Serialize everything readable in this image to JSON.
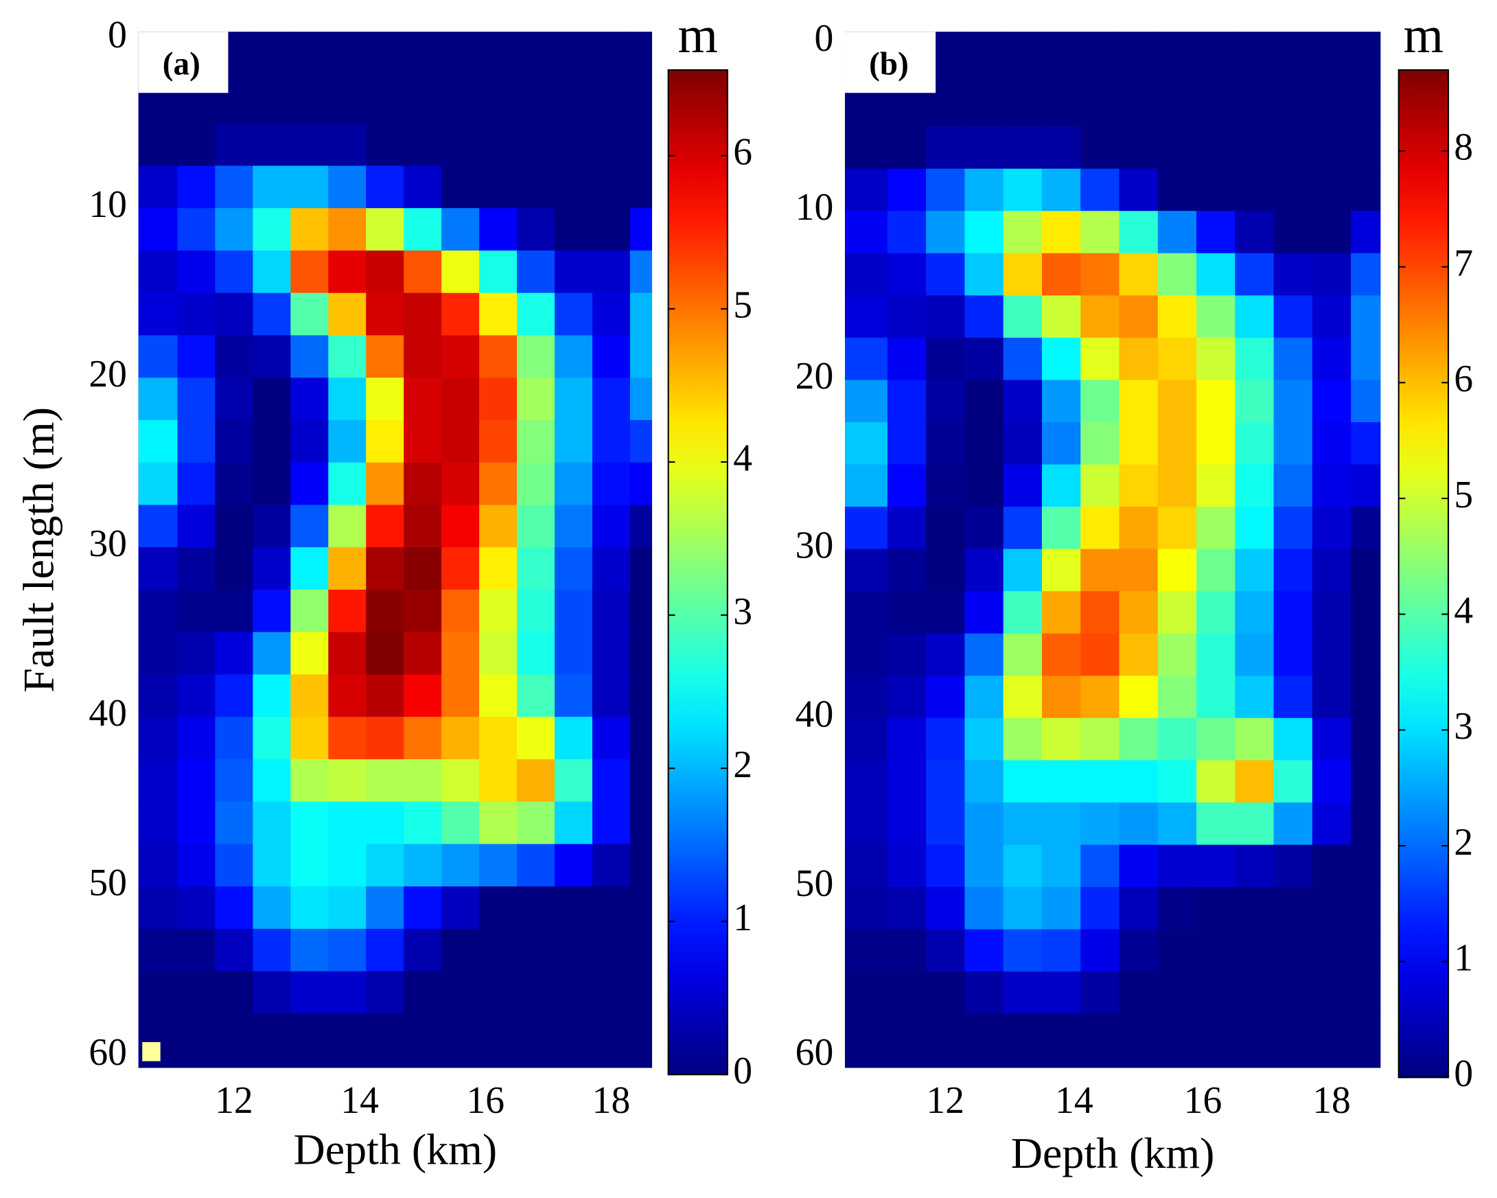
{
  "chart_data": [
    {
      "type": "heatmap",
      "panel_label": "(a)",
      "xlabel": "Depth (km)",
      "ylabel": "Fault length (m)",
      "colorbar_label": "m",
      "colormap": "jet",
      "x": [
        10.8,
        11.4,
        12.0,
        12.6,
        13.2,
        13.8,
        14.4,
        15.0,
        15.6,
        16.2,
        16.8,
        17.4,
        18.0,
        18.6
      ],
      "y": [
        1.25,
        3.75,
        6.25,
        8.75,
        11.25,
        13.75,
        16.25,
        18.75,
        21.25,
        23.75,
        26.25,
        28.75,
        31.25,
        33.75,
        36.25,
        38.75,
        41.25,
        43.75,
        46.25,
        48.75,
        51.25,
        53.75,
        56.25,
        58.75
      ],
      "values": [
        [
          0,
          0,
          0,
          0,
          0,
          0,
          0,
          0,
          0,
          0,
          0,
          0,
          0,
          0
        ],
        [
          0,
          0,
          0,
          0,
          0,
          0,
          0,
          0,
          0,
          0,
          0,
          0,
          0,
          0
        ],
        [
          0,
          0,
          0.2,
          0.2,
          0.2,
          0.2,
          0,
          0,
          0,
          0,
          0,
          0,
          0,
          0
        ],
        [
          0.5,
          0.9,
          1.4,
          2.0,
          2.0,
          1.6,
          1.0,
          0.5,
          0,
          0,
          0,
          0,
          0,
          0
        ],
        [
          0.8,
          1.2,
          1.8,
          2.6,
          4.5,
          4.8,
          3.8,
          2.6,
          1.6,
          0.8,
          0.3,
          0,
          0,
          0.8
        ],
        [
          0.5,
          0.7,
          1.2,
          2.2,
          5.2,
          5.9,
          6.1,
          5.2,
          4.0,
          2.6,
          1.3,
          0.5,
          0.5,
          1.6
        ],
        [
          0.6,
          0.5,
          0.4,
          1.2,
          3.0,
          4.5,
          6.0,
          6.1,
          5.5,
          4.2,
          2.6,
          1.2,
          0.6,
          2.0
        ],
        [
          1.3,
          0.9,
          0.2,
          0.3,
          1.5,
          2.8,
          5.0,
          6.1,
          6.0,
          5.2,
          3.3,
          1.8,
          0.8,
          2.0
        ],
        [
          2.0,
          1.2,
          0.3,
          0,
          0.6,
          2.2,
          4.0,
          6.0,
          6.1,
          5.4,
          3.5,
          2.0,
          1.0,
          1.8
        ],
        [
          2.4,
          1.2,
          0.2,
          0,
          0.5,
          2.0,
          4.2,
          6.0,
          6.1,
          5.3,
          3.3,
          2.0,
          1.0,
          1.2
        ],
        [
          2.2,
          1.0,
          0.1,
          0,
          0.8,
          2.6,
          4.8,
          6.2,
          6.0,
          5.0,
          3.2,
          1.8,
          0.9,
          0.8
        ],
        [
          1.2,
          0.6,
          0,
          0.2,
          1.4,
          3.6,
          5.6,
          6.3,
          5.8,
          4.6,
          3.0,
          1.6,
          0.7,
          0.2
        ],
        [
          0.4,
          0.2,
          0,
          0.5,
          2.4,
          4.6,
          6.3,
          6.5,
          5.5,
          4.2,
          2.8,
          1.4,
          0.5,
          0
        ],
        [
          0.2,
          0.1,
          0.1,
          0.9,
          3.4,
          5.6,
          6.5,
          6.4,
          5.1,
          3.9,
          2.7,
          1.3,
          0.4,
          0
        ],
        [
          0.2,
          0.3,
          0.6,
          1.8,
          4.0,
          6.1,
          6.6,
          6.2,
          5.0,
          3.8,
          2.6,
          1.3,
          0.4,
          0
        ],
        [
          0.3,
          0.5,
          1.0,
          2.4,
          4.5,
          6.0,
          6.2,
          5.8,
          5.0,
          4.0,
          2.9,
          1.4,
          0.4,
          0
        ],
        [
          0.4,
          0.7,
          1.3,
          2.6,
          4.4,
          5.3,
          5.4,
          5.0,
          4.6,
          4.3,
          4.0,
          2.3,
          0.7,
          0
        ],
        [
          0.5,
          0.8,
          1.4,
          2.4,
          3.6,
          3.7,
          3.6,
          3.6,
          3.8,
          4.3,
          4.6,
          2.8,
          0.9,
          0
        ],
        [
          0.5,
          0.8,
          1.5,
          2.2,
          2.5,
          2.4,
          2.4,
          2.6,
          3.0,
          3.6,
          3.4,
          2.2,
          0.9,
          0
        ],
        [
          0.4,
          0.7,
          1.3,
          2.2,
          2.5,
          2.4,
          2.2,
          2.0,
          1.8,
          1.6,
          1.3,
          0.8,
          0.3,
          0
        ],
        [
          0.3,
          0.4,
          0.9,
          1.9,
          2.3,
          2.2,
          1.6,
          0.9,
          0.4,
          0,
          0,
          0,
          0,
          0
        ],
        [
          0.1,
          0.1,
          0.4,
          1.1,
          1.5,
          1.4,
          1.0,
          0.3,
          0,
          0,
          0,
          0,
          0,
          0
        ],
        [
          0,
          0,
          0,
          0.3,
          0.5,
          0.5,
          0.3,
          0,
          0,
          0,
          0,
          0,
          0,
          0
        ],
        [
          0,
          0,
          0,
          0,
          0,
          0,
          0,
          0,
          0,
          0,
          0,
          0,
          0,
          0
        ]
      ],
      "xlim": [
        10.48,
        18.65
      ],
      "ylim": [
        60.7,
        -0.4
      ],
      "xticks": [
        12,
        14,
        16,
        18
      ],
      "yticks": [
        0,
        10,
        20,
        30,
        40,
        50,
        60
      ],
      "clim": [
        0,
        6.56
      ],
      "cticks": [
        0,
        1,
        2,
        3,
        4,
        5,
        6
      ]
    },
    {
      "type": "heatmap",
      "panel_label": "(b)",
      "xlabel": "Depth (km)",
      "colorbar_label": "m",
      "colormap": "jet",
      "x": [
        10.8,
        11.4,
        12.0,
        12.6,
        13.2,
        13.8,
        14.4,
        15.0,
        15.6,
        16.2,
        16.8,
        17.4,
        18.0,
        18.6
      ],
      "y": [
        1.25,
        3.75,
        6.25,
        8.75,
        11.25,
        13.75,
        16.25,
        18.75,
        21.25,
        23.75,
        26.25,
        28.75,
        31.25,
        33.75,
        36.25,
        38.75,
        41.25,
        43.75,
        46.25,
        48.75,
        51.25,
        53.75,
        56.25,
        58.75
      ],
      "values": [
        [
          0,
          0,
          0,
          0,
          0,
          0,
          0,
          0,
          0,
          0,
          0,
          0,
          0,
          0
        ],
        [
          0,
          0,
          0,
          0,
          0,
          0,
          0,
          0,
          0,
          0,
          0,
          0,
          0,
          0
        ],
        [
          0,
          0,
          0.3,
          0.3,
          0.3,
          0.3,
          0,
          0,
          0,
          0,
          0,
          0,
          0,
          0
        ],
        [
          0.6,
          1.1,
          1.8,
          2.6,
          3.0,
          2.6,
          1.6,
          0.6,
          0,
          0,
          0,
          0,
          0,
          0
        ],
        [
          1.0,
          1.4,
          2.4,
          3.2,
          4.8,
          5.6,
          4.8,
          3.6,
          2.2,
          1.2,
          0.4,
          0,
          0,
          0.8
        ],
        [
          0.6,
          0.8,
          1.4,
          2.8,
          5.8,
          6.8,
          6.6,
          5.8,
          4.4,
          3.0,
          1.6,
          0.6,
          0.5,
          1.8
        ],
        [
          0.8,
          0.6,
          0.5,
          1.4,
          3.8,
          5.0,
          6.2,
          6.4,
          5.6,
          4.4,
          3.0,
          1.4,
          0.7,
          2.2
        ],
        [
          1.6,
          1.0,
          0.2,
          0.3,
          1.8,
          3.2,
          5.2,
          6.0,
          5.8,
          5.0,
          3.6,
          2.0,
          0.9,
          2.2
        ],
        [
          2.4,
          1.3,
          0.3,
          0,
          0.6,
          2.4,
          4.2,
          5.6,
          6.0,
          5.4,
          3.8,
          2.2,
          1.1,
          2.0
        ],
        [
          2.8,
          1.3,
          0.2,
          0,
          0.5,
          2.2,
          4.4,
          5.6,
          6.0,
          5.4,
          3.6,
          2.2,
          1.0,
          1.3
        ],
        [
          2.6,
          1.1,
          0.1,
          0,
          0.9,
          3.0,
          5.0,
          5.8,
          6.0,
          5.2,
          3.4,
          2.0,
          0.9,
          0.8
        ],
        [
          1.4,
          0.6,
          0,
          0.2,
          1.6,
          4.0,
          5.6,
          6.2,
          5.8,
          4.6,
          3.2,
          1.6,
          0.7,
          0.2
        ],
        [
          0.4,
          0.2,
          0,
          0.6,
          2.8,
          5.2,
          6.4,
          6.4,
          5.4,
          4.2,
          2.8,
          1.3,
          0.5,
          0
        ],
        [
          0.2,
          0.1,
          0.1,
          1.0,
          3.8,
          6.2,
          6.9,
          6.2,
          5.0,
          3.8,
          2.6,
          1.2,
          0.4,
          0
        ],
        [
          0.2,
          0.3,
          0.6,
          2.0,
          4.6,
          6.8,
          7.0,
          6.0,
          4.6,
          3.6,
          2.5,
          1.2,
          0.4,
          0
        ],
        [
          0.3,
          0.5,
          1.0,
          2.6,
          5.2,
          6.4,
          6.2,
          5.4,
          4.4,
          3.6,
          2.8,
          1.4,
          0.4,
          0
        ],
        [
          0.4,
          0.8,
          1.4,
          2.8,
          4.6,
          5.0,
          4.8,
          4.2,
          3.8,
          4.2,
          4.6,
          3.0,
          0.8,
          0
        ],
        [
          0.5,
          0.8,
          1.5,
          2.6,
          3.2,
          3.2,
          3.2,
          3.2,
          3.4,
          5.0,
          6.0,
          3.6,
          1.0,
          0
        ],
        [
          0.5,
          0.8,
          1.5,
          2.4,
          2.6,
          2.6,
          2.5,
          2.4,
          2.6,
          3.8,
          3.8,
          2.4,
          0.8,
          0
        ],
        [
          0.4,
          0.7,
          1.3,
          2.4,
          2.8,
          2.6,
          1.8,
          1.0,
          0.7,
          0.7,
          0.5,
          0.3,
          0,
          0
        ],
        [
          0.3,
          0.4,
          0.9,
          2.2,
          2.6,
          2.4,
          1.4,
          0.5,
          0.1,
          0,
          0,
          0,
          0,
          0
        ],
        [
          0.1,
          0.1,
          0.4,
          1.2,
          1.7,
          1.6,
          0.9,
          0.2,
          0,
          0,
          0,
          0,
          0,
          0
        ],
        [
          0,
          0,
          0,
          0.3,
          0.6,
          0.6,
          0.3,
          0,
          0,
          0,
          0,
          0,
          0,
          0
        ],
        [
          0,
          0,
          0,
          0,
          0,
          0,
          0,
          0,
          0,
          0,
          0,
          0,
          0,
          0
        ]
      ],
      "xlim": [
        10.44,
        18.76
      ],
      "ylim": [
        60.7,
        -0.6
      ],
      "xticks": [
        12,
        14,
        16,
        18
      ],
      "yticks": [
        0,
        10,
        20,
        30,
        40,
        50,
        60
      ],
      "clim": [
        0,
        8.7
      ],
      "cticks": [
        0,
        1,
        2,
        3,
        4,
        5,
        6,
        7,
        8
      ]
    }
  ]
}
